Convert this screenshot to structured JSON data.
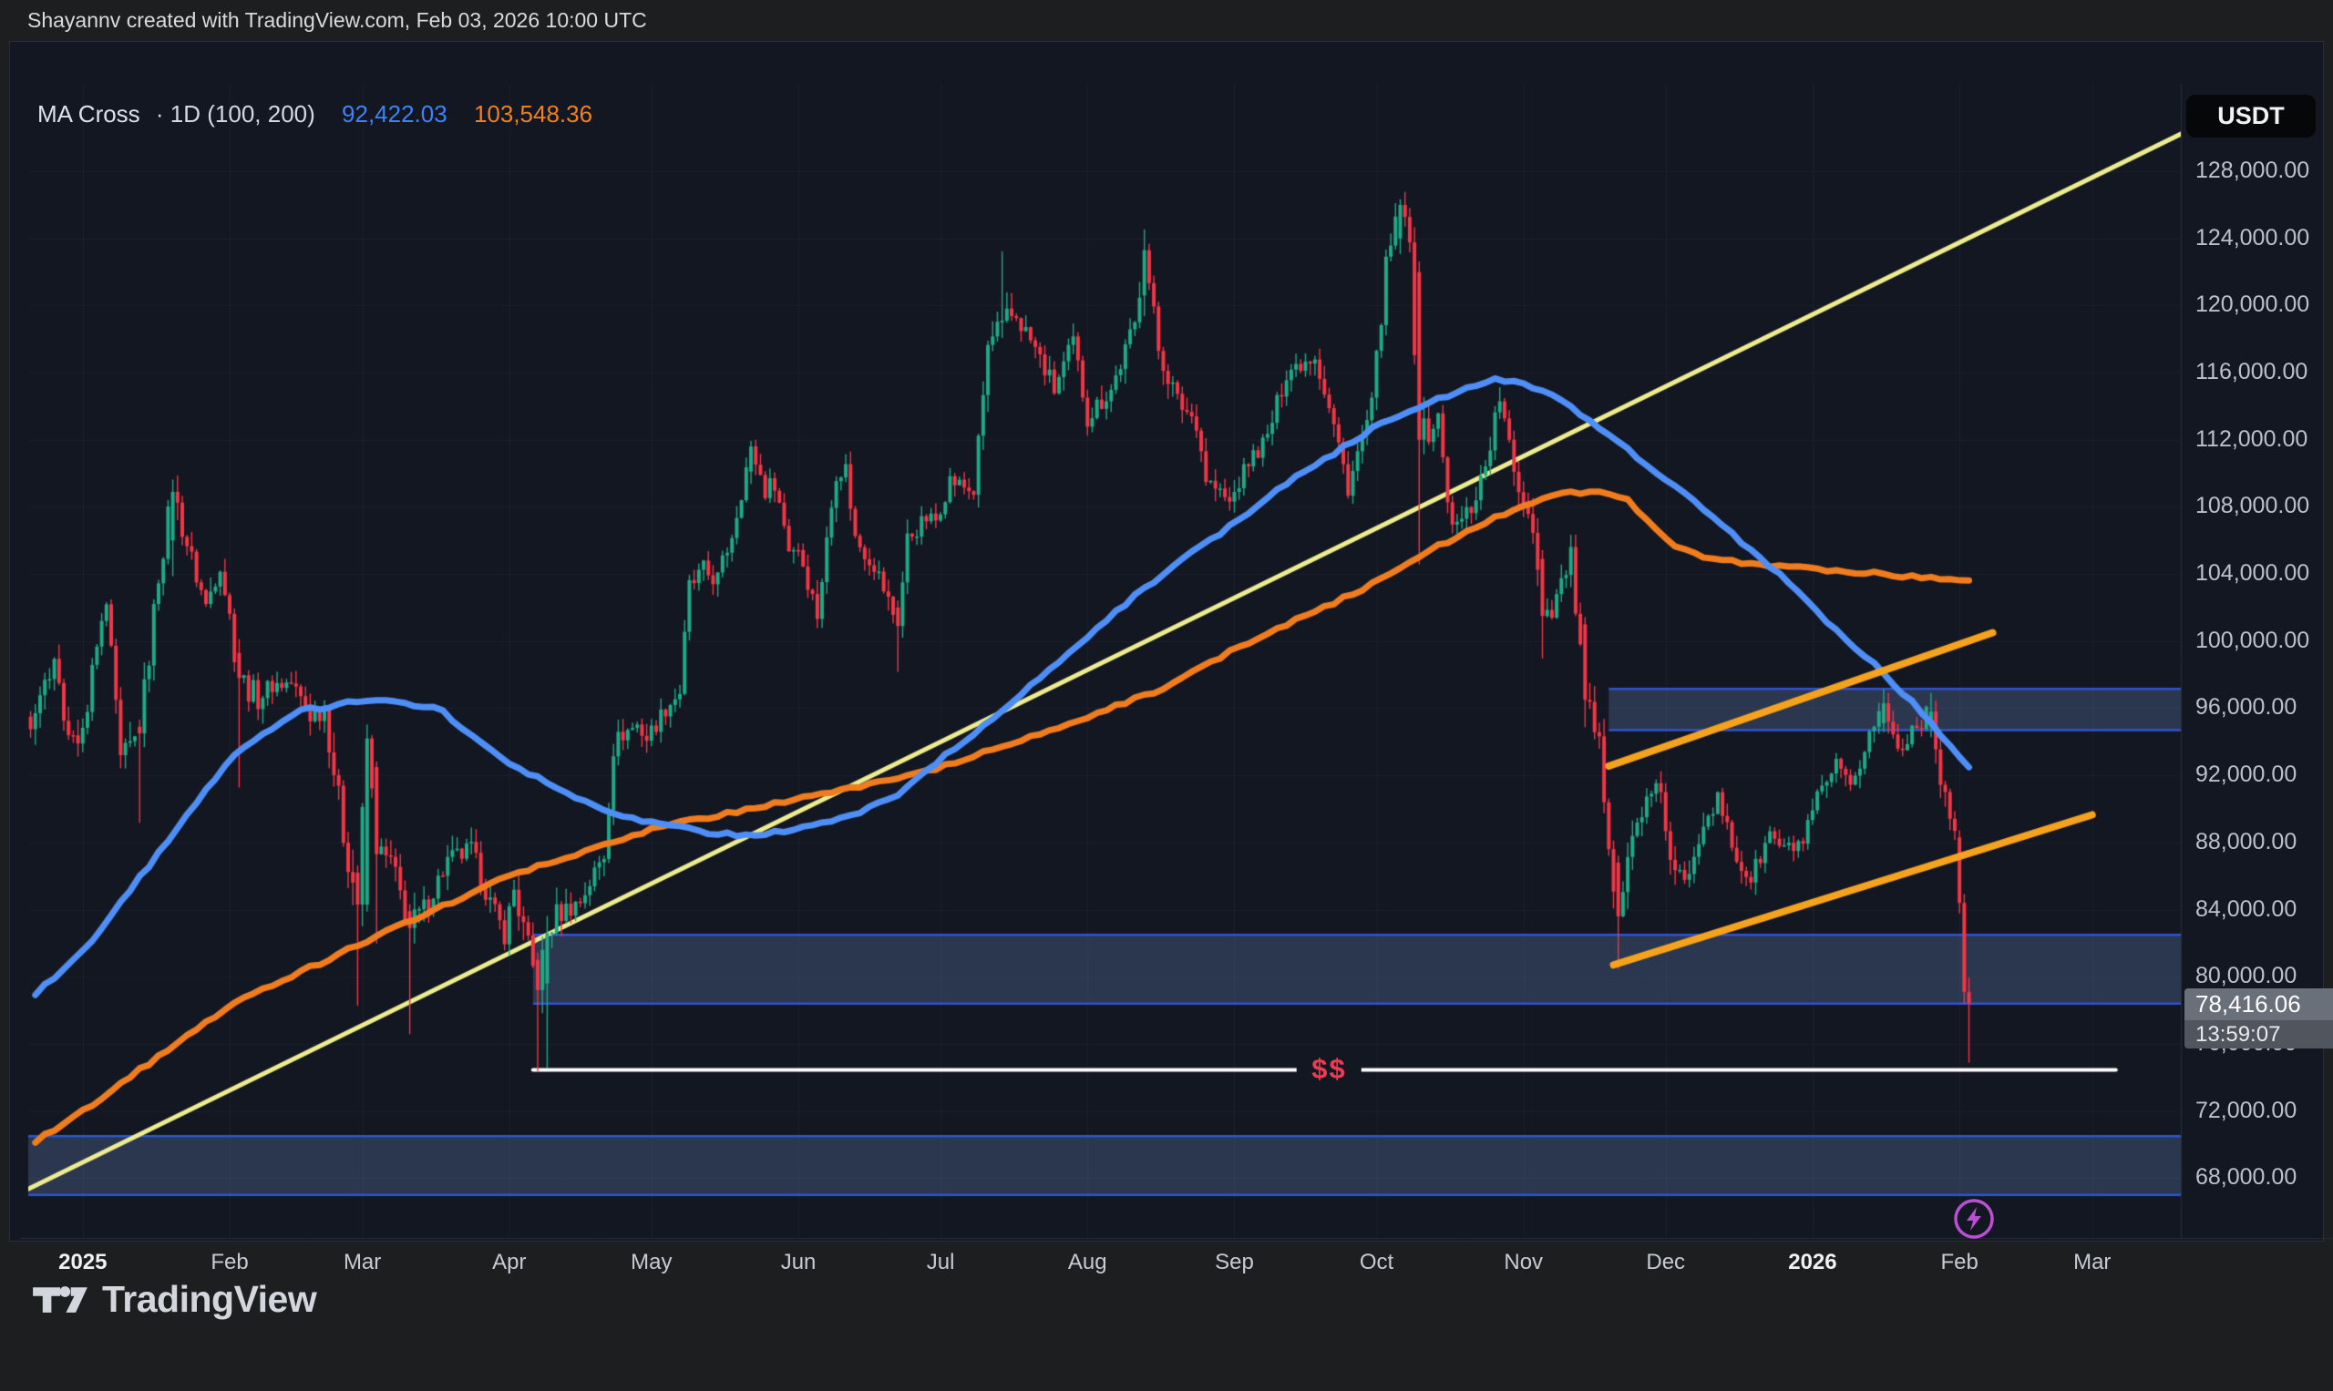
{
  "frame": {
    "header_text": "Shayannv created with TradingView.com, Feb 03, 2026 10:00 UTC",
    "logo_text": "TradingView"
  },
  "chart": {
    "legend": {
      "title": "MA Cross",
      "meta": "· 1D (100, 200)",
      "ma100_value": "92,422.03",
      "ma200_value": "103,548.36"
    },
    "axis": {
      "currency": "USDT"
    },
    "price_label": {
      "value": "78,416.06",
      "countdown": "13:59:07"
    },
    "annotations": {
      "dollar_label": "$$"
    }
  },
  "chart_data": {
    "type": "candlestick",
    "interval": "1D",
    "quote_currency": "USDT",
    "indicator": {
      "name": "MA Cross",
      "params": [
        100,
        200
      ],
      "ma100_last": 92422.03,
      "ma200_last": 103548.36
    },
    "last_price": 78416.06,
    "bar_countdown": "13:59:07",
    "x_unit": "days_since_2025-01-01",
    "xlim": [
      -11.5,
      442.7
    ],
    "ylim": [
      64430,
      133160
    ],
    "grid": true,
    "y_ticks": [
      {
        "price": 128000,
        "label": "128,000.00"
      },
      {
        "price": 124000,
        "label": "124,000.00"
      },
      {
        "price": 120000,
        "label": "120,000.00"
      },
      {
        "price": 116000,
        "label": "116,000.00"
      },
      {
        "price": 112000,
        "label": "112,000.00"
      },
      {
        "price": 108000,
        "label": "108,000.00"
      },
      {
        "price": 104000,
        "label": "104,000.00"
      },
      {
        "price": 100000,
        "label": "100,000.00"
      },
      {
        "price": 96000,
        "label": "96,000.00"
      },
      {
        "price": 92000,
        "label": "92,000.00"
      },
      {
        "price": 88000,
        "label": "88,000.00"
      },
      {
        "price": 84000,
        "label": "84,000.00"
      },
      {
        "price": 80000,
        "label": "80,000.00"
      },
      {
        "price": 76000,
        "label": "76,000.00"
      },
      {
        "price": 72000,
        "label": "72,000.00"
      },
      {
        "price": 68000,
        "label": "68,000.00"
      }
    ],
    "x_ticks": [
      {
        "day": 0,
        "label": "2025",
        "strong": true
      },
      {
        "day": 31,
        "label": "Feb"
      },
      {
        "day": 59,
        "label": "Mar"
      },
      {
        "day": 90,
        "label": "Apr"
      },
      {
        "day": 120,
        "label": "May"
      },
      {
        "day": 151,
        "label": "Jun"
      },
      {
        "day": 181,
        "label": "Jul"
      },
      {
        "day": 212,
        "label": "Aug"
      },
      {
        "day": 243,
        "label": "Sep"
      },
      {
        "day": 273,
        "label": "Oct"
      },
      {
        "day": 304,
        "label": "Nov"
      },
      {
        "day": 334,
        "label": "Dec"
      },
      {
        "day": 365,
        "label": "2026",
        "strong": true
      },
      {
        "day": 396,
        "label": "Feb"
      },
      {
        "day": 424,
        "label": "Mar"
      }
    ],
    "close_anchors_k": [
      [
        -10,
        95.5,
        1.8
      ],
      [
        -6,
        99.0,
        1.6
      ],
      [
        -3,
        93.8,
        1.8
      ],
      [
        0,
        94.4,
        1.6
      ],
      [
        2,
        98.2,
        1.5
      ],
      [
        5,
        102.1,
        1.8
      ],
      [
        8,
        92.6,
        2.2
      ],
      [
        12,
        94.5,
        2.4
      ],
      [
        16,
        104.0,
        2.0
      ],
      [
        19,
        108.9,
        2.0
      ],
      [
        23,
        104.8,
        1.8
      ],
      [
        26,
        102.1,
        1.6
      ],
      [
        29,
        104.7,
        1.5
      ],
      [
        31,
        101.4,
        2.0
      ],
      [
        33,
        97.8,
        2.4
      ],
      [
        37,
        96.6,
        1.7
      ],
      [
        40,
        97.4,
        1.4
      ],
      [
        44,
        97.5,
        1.3
      ],
      [
        48,
        95.6,
        1.6
      ],
      [
        51,
        96.1,
        2.0
      ],
      [
        55,
        88.6,
        2.4
      ],
      [
        58,
        84.3,
        2.8
      ],
      [
        60,
        94.2,
        2.6
      ],
      [
        62,
        87.3,
        2.4
      ],
      [
        65,
        86.8,
        2.0
      ],
      [
        69,
        82.9,
        2.4
      ],
      [
        72,
        84.0,
        1.8
      ],
      [
        77,
        86.9,
        1.5
      ],
      [
        82,
        87.5,
        1.6
      ],
      [
        86,
        84.4,
        1.5
      ],
      [
        89,
        82.5,
        1.4
      ],
      [
        91,
        85.2,
        1.9
      ],
      [
        96,
        79.2,
        2.4
      ],
      [
        98,
        82.6,
        2.8
      ],
      [
        100,
        83.7,
        1.8
      ],
      [
        105,
        84.5,
        1.4
      ],
      [
        110,
        87.3,
        1.6
      ],
      [
        112,
        93.7,
        1.7
      ],
      [
        114,
        94.5,
        1.4
      ],
      [
        117,
        95.0,
        1.2
      ],
      [
        119,
        94.2,
        1.3
      ],
      [
        123,
        96.0,
        1.3
      ],
      [
        126,
        97.0,
        1.4
      ],
      [
        128,
        103.2,
        1.6
      ],
      [
        131,
        104.1,
        1.7
      ],
      [
        134,
        103.7,
        1.5
      ],
      [
        137,
        106.4,
        1.4
      ],
      [
        141,
        111.6,
        1.5
      ],
      [
        144,
        109.0,
        1.5
      ],
      [
        146,
        109.5,
        1.3
      ],
      [
        149,
        105.6,
        1.5
      ],
      [
        151,
        105.6,
        1.3
      ],
      [
        155,
        101.6,
        1.5
      ],
      [
        159,
        110.2,
        1.6
      ],
      [
        161,
        110.3,
        1.3
      ],
      [
        163,
        106.1,
        1.5
      ],
      [
        167,
        104.6,
        1.4
      ],
      [
        172,
        100.9,
        1.5
      ],
      [
        174,
        106.1,
        1.5
      ],
      [
        178,
        107.3,
        1.2
      ],
      [
        180,
        107.2,
        1.1
      ],
      [
        183,
        109.6,
        1.3
      ],
      [
        188,
        108.9,
        1.2
      ],
      [
        191,
        117.5,
        1.8
      ],
      [
        194,
        119.1,
        2.0
      ],
      [
        197,
        119.4,
        1.6
      ],
      [
        201,
        117.4,
        1.5
      ],
      [
        205,
        115.0,
        1.6
      ],
      [
        209,
        117.8,
        1.4
      ],
      [
        212,
        113.4,
        1.7
      ],
      [
        217,
        115.0,
        1.4
      ],
      [
        222,
        118.8,
        1.7
      ],
      [
        224,
        123.3,
        1.8
      ],
      [
        227,
        117.4,
        1.8
      ],
      [
        231,
        114.3,
        1.5
      ],
      [
        235,
        113.1,
        1.4
      ],
      [
        237,
        109.7,
        1.5
      ],
      [
        242,
        108.2,
        1.3
      ],
      [
        246,
        110.7,
        1.3
      ],
      [
        250,
        112.1,
        1.3
      ],
      [
        254,
        116.1,
        1.5
      ],
      [
        260,
        117.1,
        1.3
      ],
      [
        264,
        112.8,
        1.5
      ],
      [
        267,
        109.2,
        1.4
      ],
      [
        272,
        114.0,
        1.4
      ],
      [
        275,
        122.2,
        1.7
      ],
      [
        278,
        126.0,
        1.5
      ],
      [
        280,
        123.5,
        1.5
      ],
      [
        282,
        112.0,
        2.5
      ],
      [
        286,
        113.2,
        1.8
      ],
      [
        289,
        106.5,
        2.0
      ],
      [
        293,
        108.0,
        1.6
      ],
      [
        296,
        110.5,
        1.5
      ],
      [
        299,
        114.5,
        1.5
      ],
      [
        302,
        110.0,
        1.6
      ],
      [
        306,
        107.0,
        1.8
      ],
      [
        308,
        101.5,
        2.2
      ],
      [
        310,
        102.0,
        1.6
      ],
      [
        314,
        105.0,
        1.5
      ],
      [
        317,
        96.5,
        2.4
      ],
      [
        320,
        93.5,
        2.0
      ],
      [
        324,
        83.6,
        2.6
      ],
      [
        327,
        88.2,
        1.9
      ],
      [
        329,
        90.0,
        1.5
      ],
      [
        333,
        91.3,
        1.3
      ],
      [
        335,
        86.5,
        1.9
      ],
      [
        338,
        85.5,
        1.6
      ],
      [
        342,
        89.5,
        1.5
      ],
      [
        345,
        90.5,
        1.3
      ],
      [
        349,
        87.0,
        1.5
      ],
      [
        352,
        85.8,
        1.4
      ],
      [
        356,
        88.5,
        1.3
      ],
      [
        359,
        87.5,
        1.2
      ],
      [
        363,
        88.0,
        1.2
      ],
      [
        366,
        90.5,
        1.3
      ],
      [
        370,
        92.5,
        1.3
      ],
      [
        373,
        91.0,
        1.3
      ],
      [
        377,
        94.5,
        1.4
      ],
      [
        380,
        96.3,
        1.3
      ],
      [
        383,
        93.5,
        1.4
      ],
      [
        386,
        94.8,
        1.3
      ],
      [
        390,
        95.8,
        1.3
      ],
      [
        392,
        92.0,
        1.7
      ],
      [
        394,
        89.8,
        1.5
      ],
      [
        395,
        88.3,
        1.4
      ],
      [
        396,
        84.4,
        1.6
      ],
      [
        397,
        79.1,
        1.8
      ],
      [
        398,
        78.4,
        1.6
      ]
    ],
    "candle_overrides_k": [
      [
        12,
        94.9,
        95.3,
        89.2,
        94.5
      ],
      [
        19,
        106.0,
        109.6,
        103.9,
        108.9
      ],
      [
        33,
        99.3,
        100.1,
        91.3,
        97.8
      ],
      [
        58,
        86.2,
        86.6,
        78.3,
        84.3
      ],
      [
        60,
        84.3,
        95.0,
        83.9,
        94.2
      ],
      [
        62,
        92.5,
        92.8,
        82.0,
        87.3
      ],
      [
        69,
        83.9,
        84.3,
        76.6,
        82.9
      ],
      [
        96,
        81.0,
        81.4,
        74.4,
        79.2
      ],
      [
        98,
        79.6,
        83.6,
        74.6,
        82.6
      ],
      [
        141,
        110.1,
        111.9,
        109.4,
        111.6
      ],
      [
        172,
        102.0,
        102.4,
        98.2,
        100.9
      ],
      [
        194,
        119.0,
        123.2,
        118.1,
        119.1
      ],
      [
        224,
        120.6,
        124.5,
        119.4,
        123.3
      ],
      [
        278,
        124.0,
        126.3,
        123.1,
        126.0
      ],
      [
        282,
        122.0,
        122.6,
        104.6,
        112.0
      ],
      [
        308,
        104.9,
        105.4,
        99.0,
        101.5
      ],
      [
        317,
        101.0,
        101.4,
        94.9,
        96.5
      ],
      [
        324,
        86.8,
        87.2,
        80.5,
        83.6
      ],
      [
        380,
        95.1,
        97.1,
        94.6,
        96.3
      ],
      [
        390,
        94.9,
        96.9,
        94.3,
        95.8
      ],
      [
        396,
        88.3,
        88.7,
        83.8,
        84.4
      ],
      [
        397,
        84.4,
        84.9,
        78.4,
        79.1
      ],
      [
        398,
        79.1,
        79.9,
        74.9,
        78.42
      ]
    ],
    "ma100_k": [
      [
        -10,
        79.0
      ],
      [
        0,
        81.5
      ],
      [
        15,
        87.0
      ],
      [
        31,
        93.0
      ],
      [
        45,
        95.8
      ],
      [
        60,
        96.5
      ],
      [
        75,
        96.0
      ],
      [
        89,
        92.8
      ],
      [
        100,
        91.3
      ],
      [
        110,
        89.9
      ],
      [
        120,
        89.2
      ],
      [
        131,
        88.6
      ],
      [
        141,
        88.4
      ],
      [
        151,
        88.8
      ],
      [
        162,
        89.6
      ],
      [
        172,
        90.9
      ],
      [
        181,
        93.0
      ],
      [
        191,
        95.1
      ],
      [
        201,
        97.6
      ],
      [
        212,
        100.3
      ],
      [
        222,
        102.7
      ],
      [
        232,
        104.9
      ],
      [
        243,
        107.0
      ],
      [
        253,
        109.2
      ],
      [
        264,
        111.2
      ],
      [
        273,
        112.8
      ],
      [
        282,
        113.9
      ],
      [
        290,
        114.9
      ],
      [
        297,
        115.6
      ],
      [
        303,
        115.5
      ],
      [
        310,
        114.6
      ],
      [
        317,
        113.4
      ],
      [
        324,
        111.9
      ],
      [
        330,
        110.5
      ],
      [
        336,
        109.2
      ],
      [
        344,
        107.4
      ],
      [
        352,
        105.4
      ],
      [
        358,
        104.0
      ],
      [
        365,
        102.0
      ],
      [
        371,
        100.4
      ],
      [
        377,
        98.9
      ],
      [
        382,
        97.5
      ],
      [
        387,
        96.1
      ],
      [
        392,
        94.4
      ],
      [
        398,
        92.42
      ]
    ],
    "ma200_k": [
      [
        -10,
        70.2
      ],
      [
        0,
        72.0
      ],
      [
        31,
        78.3
      ],
      [
        59,
        82.0
      ],
      [
        90,
        86.0
      ],
      [
        120,
        88.8
      ],
      [
        151,
        90.6
      ],
      [
        166,
        91.5
      ],
      [
        181,
        92.5
      ],
      [
        197,
        94.0
      ],
      [
        212,
        95.5
      ],
      [
        228,
        97.2
      ],
      [
        243,
        99.5
      ],
      [
        258,
        101.5
      ],
      [
        273,
        103.5
      ],
      [
        285,
        105.5
      ],
      [
        295,
        107.0
      ],
      [
        305,
        108.2
      ],
      [
        313,
        108.8
      ],
      [
        320,
        109.0
      ],
      [
        326,
        108.4
      ],
      [
        331,
        107.0
      ],
      [
        336,
        105.6
      ],
      [
        342,
        105.0
      ],
      [
        352,
        104.6
      ],
      [
        365,
        104.3
      ],
      [
        378,
        104.05
      ],
      [
        388,
        103.8
      ],
      [
        398,
        103.55
      ]
    ],
    "trendlines": [
      {
        "name": "yellow-uptrend",
        "color": "#edec8e",
        "width": 5,
        "p1": [
          -11.5,
          67.35
        ],
        "p2": [
          444,
          130.4
        ]
      },
      {
        "name": "orange-channel-upper",
        "color": "#f5a21c",
        "width": 8,
        "p1": [
          322,
          92.55
        ],
        "p2": [
          403,
          100.5
        ]
      },
      {
        "name": "orange-channel-lower",
        "color": "#f5a21c",
        "width": 8,
        "p1": [
          323,
          80.7
        ],
        "p2": [
          424,
          89.65
        ]
      }
    ],
    "hline": {
      "price_k": 74.45,
      "from_day": 95,
      "to_day": 429,
      "color": "#ffffff",
      "width": 4,
      "label": "$$",
      "label_day": 263
    },
    "zones": [
      {
        "name": "resistance-zone",
        "from_day": 322,
        "top_k": 97.15,
        "bottom_k": 94.7
      },
      {
        "name": "support-zone-mid",
        "from_day": 95,
        "top_k": 82.5,
        "bottom_k": 78.4
      },
      {
        "name": "support-zone-low",
        "from_day": -11.5,
        "top_k": 70.5,
        "bottom_k": 67.0
      }
    ],
    "colors": {
      "background": "#131722",
      "up": "#1eaa85",
      "down": "#f23645",
      "ma100": "#4e8ef7",
      "ma200": "#f07c1d",
      "zone_fill": "rgba(88,114,164,0.35)",
      "zone_border": "#2f55d4",
      "grid": "rgba(150,160,185,0.07)",
      "axis_border": "#2a2e39",
      "dollar": "#ee3a53",
      "white_line": "#ffffff",
      "yellow_line": "#edec8e",
      "trend_orange": "#f5a21c"
    }
  }
}
